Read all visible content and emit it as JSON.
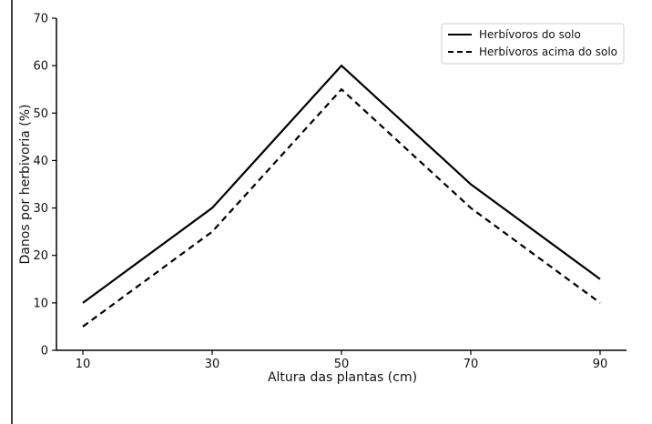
{
  "chart_data": {
    "type": "line",
    "x": [
      10,
      30,
      50,
      70,
      90
    ],
    "series": [
      {
        "name": "Herbívoros do solo",
        "values": [
          10,
          30,
          60,
          35,
          15
        ],
        "style": "solid",
        "color": "#000000"
      },
      {
        "name": "Herbívoros acima do solo",
        "values": [
          5,
          25,
          55,
          30,
          10
        ],
        "style": "dashed",
        "color": "#000000"
      }
    ],
    "title": "",
    "xlabel": "Altura das plantas (cm)",
    "ylabel": "Danos por herbivoria (%)",
    "xticks": [
      "10",
      "30",
      "50",
      "70",
      "90"
    ],
    "yticks": [
      "0",
      "10",
      "20",
      "30",
      "40",
      "50",
      "60",
      "70"
    ],
    "xlim": [
      10,
      90
    ],
    "ylim": [
      0,
      70
    ],
    "grid": false,
    "legend_position": "top-right"
  }
}
